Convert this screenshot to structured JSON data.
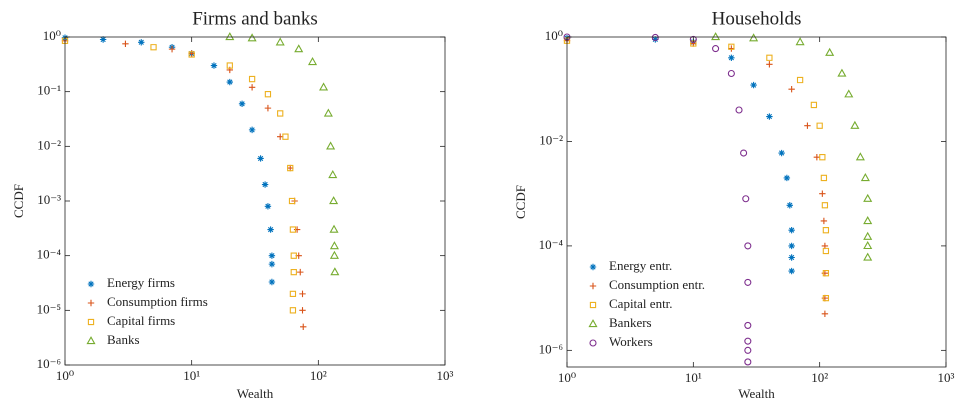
{
  "chart_data": [
    {
      "type": "scatter",
      "title": "Firms and banks",
      "x_label": "Wealth",
      "y_label": "CCDF",
      "log_x": true,
      "log_y": true,
      "legend": "lower left",
      "xlim": [
        1,
        1000
      ],
      "ylim": [
        1e-06,
        1
      ],
      "xticks": [
        {
          "value": 1,
          "label": "10⁰"
        },
        {
          "value": 10,
          "label": "10¹"
        },
        {
          "value": 100,
          "label": "10²"
        },
        {
          "value": 1000,
          "label": "10³"
        }
      ],
      "yticks": [
        {
          "value": 1e-06,
          "label": "10⁻⁶"
        },
        {
          "value": 1e-05,
          "label": "10⁻⁵"
        },
        {
          "value": 0.0001,
          "label": "10⁻⁴"
        },
        {
          "value": 0.001,
          "label": "10⁻³"
        },
        {
          "value": 0.01,
          "label": "10⁻²"
        },
        {
          "value": 0.1,
          "label": "10⁻¹"
        },
        {
          "value": 1,
          "label": "10⁰"
        }
      ],
      "series": [
        {
          "name": "Energy firms",
          "color": "#0072BD",
          "marker": "asterisk",
          "x": [
            1,
            2,
            4,
            7,
            10,
            15,
            20,
            25,
            30,
            35,
            38,
            40,
            42,
            43,
            43,
            43
          ],
          "values": [
            0.97,
            0.9,
            0.8,
            0.65,
            0.5,
            0.3,
            0.15,
            0.06,
            0.02,
            0.006,
            0.002,
            0.0008,
            0.0003,
            0.0001,
            7e-05,
            3.3e-05
          ]
        },
        {
          "name": "Consumption firms",
          "color": "#D95319",
          "marker": "plus",
          "x": [
            1,
            3,
            7,
            10,
            20,
            30,
            40,
            50,
            60,
            65,
            68,
            70,
            72,
            75,
            75,
            76
          ],
          "values": [
            0.85,
            0.75,
            0.6,
            0.5,
            0.25,
            0.12,
            0.05,
            0.015,
            0.004,
            0.001,
            0.0003,
            0.0001,
            5e-05,
            2e-05,
            1e-05,
            5e-06
          ]
        },
        {
          "name": "Capital firms",
          "color": "#EDB120",
          "marker": "square",
          "x": [
            1,
            5,
            10,
            20,
            30,
            40,
            50,
            55,
            60,
            62,
            63,
            64,
            64,
            63,
            63
          ],
          "values": [
            0.85,
            0.65,
            0.48,
            0.3,
            0.17,
            0.09,
            0.04,
            0.015,
            0.004,
            0.001,
            0.0003,
            0.0001,
            5e-05,
            2e-05,
            1e-05
          ]
        },
        {
          "name": "Banks",
          "color": "#77AC30",
          "marker": "triangle",
          "x": [
            20,
            30,
            50,
            70,
            90,
            110,
            120,
            125,
            130,
            132,
            133,
            134,
            134,
            135
          ],
          "values": [
            1,
            0.95,
            0.8,
            0.6,
            0.35,
            0.12,
            0.04,
            0.01,
            0.003,
            0.001,
            0.0003,
            0.00015,
            0.0001,
            5e-05
          ]
        }
      ]
    },
    {
      "type": "scatter",
      "title": "Households",
      "x_label": "Wealth",
      "y_label": "CCDF",
      "log_x": true,
      "log_y": true,
      "legend": "lower left",
      "xlim": [
        1,
        1000
      ],
      "ylim": [
        4.8e-07,
        1
      ],
      "xticks": [
        {
          "value": 1,
          "label": "10⁰"
        },
        {
          "value": 10,
          "label": "10¹"
        },
        {
          "value": 100,
          "label": "10²"
        },
        {
          "value": 1000,
          "label": "10³"
        }
      ],
      "yticks": [
        {
          "value": 1e-06,
          "label": "10⁻⁶"
        },
        {
          "value": 0.0001,
          "label": "10⁻⁴"
        },
        {
          "value": 0.01,
          "label": "10⁻²"
        },
        {
          "value": 1,
          "label": "10⁰"
        }
      ],
      "series": [
        {
          "name": "Energy entr.",
          "color": "#0072BD",
          "marker": "asterisk",
          "x": [
            1,
            5,
            10,
            20,
            30,
            40,
            50,
            55,
            58,
            60,
            60,
            60,
            60
          ],
          "values": [
            0.95,
            0.9,
            0.8,
            0.4,
            0.12,
            0.03,
            0.006,
            0.002,
            0.0006,
            0.0002,
            0.0001,
            6e-05,
            3.3e-05
          ]
        },
        {
          "name": "Consumption entr.",
          "color": "#D95319",
          "marker": "plus",
          "x": [
            1,
            10,
            20,
            40,
            60,
            80,
            95,
            105,
            108,
            110,
            110,
            110,
            110
          ],
          "values": [
            0.85,
            0.75,
            0.6,
            0.3,
            0.1,
            0.02,
            0.005,
            0.001,
            0.0003,
            0.0001,
            3e-05,
            1e-05,
            5e-06
          ]
        },
        {
          "name": "Capital entr.",
          "color": "#EDB120",
          "marker": "square",
          "x": [
            1,
            10,
            20,
            40,
            70,
            90,
            100,
            105,
            108,
            110,
            112,
            112,
            112,
            112
          ],
          "values": [
            0.85,
            0.75,
            0.65,
            0.4,
            0.15,
            0.05,
            0.02,
            0.005,
            0.002,
            0.0006,
            0.0002,
            8e-05,
            3e-05,
            1e-05
          ]
        },
        {
          "name": "Bankers",
          "color": "#77AC30",
          "marker": "triangle",
          "x": [
            15,
            30,
            70,
            120,
            150,
            170,
            190,
            210,
            230,
            240,
            240,
            240,
            240,
            240
          ],
          "values": [
            1,
            0.95,
            0.8,
            0.5,
            0.2,
            0.08,
            0.02,
            0.005,
            0.002,
            0.0008,
            0.0003,
            0.00015,
            0.0001,
            6e-05
          ]
        },
        {
          "name": "Workers",
          "color": "#7E2F8E",
          "marker": "circle",
          "x": [
            1,
            5,
            10,
            15,
            20,
            23,
            25,
            26,
            27,
            27,
            27,
            27,
            27,
            27
          ],
          "values": [
            1,
            0.98,
            0.9,
            0.6,
            0.2,
            0.04,
            0.006,
            0.0008,
            0.0001,
            2e-05,
            3e-06,
            1.5e-06,
            1e-06,
            6e-07
          ]
        }
      ]
    }
  ]
}
